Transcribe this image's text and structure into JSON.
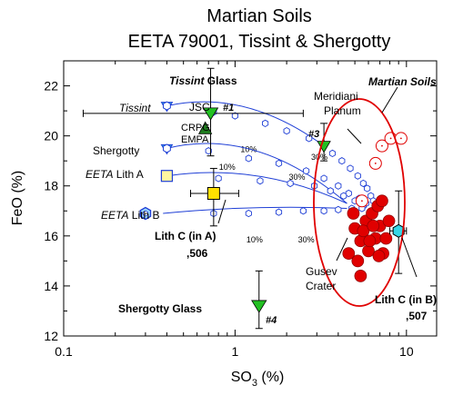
{
  "chart_data": {
    "type": "scatter",
    "title": "Martian Soils",
    "subtitle": "EETA 79001, Tissint & Shergotty",
    "xlabel_main": "SO",
    "xlabel_sub": "3",
    "xlabel_tail": " (%)",
    "ylabel": "FeO (%)",
    "x_scale": "log",
    "xlim": [
      0.1,
      15
    ],
    "ylim": [
      12,
      23
    ],
    "x_ticks": [
      {
        "value": 0.1,
        "label": "0.1"
      },
      {
        "value": 1,
        "label": "1"
      },
      {
        "value": 10,
        "label": "10"
      }
    ],
    "y_ticks": [
      {
        "value": 12,
        "label": "12"
      },
      {
        "value": 14,
        "label": "14"
      },
      {
        "value": 16,
        "label": "16"
      },
      {
        "value": 18,
        "label": "18"
      },
      {
        "value": 20,
        "label": "20"
      },
      {
        "value": 22,
        "label": "22"
      }
    ],
    "colors": {
      "mixing": "#1f3fd6",
      "gusev": "#e00000",
      "glass_green": "#22c022",
      "dark_green": "#1f7a1f",
      "lithc_yellow": "#ffe000",
      "lithc_cyan": "#36d6e6",
      "ellipse": "#e00000"
    },
    "mixing_lines": [
      {
        "start": [
          0.4,
          21.2
        ],
        "end": [
          3.3,
          19.6
        ],
        "ticks": [
          "10%",
          "30%"
        ],
        "tick_values": [
          [
            1.2,
            20.0
          ],
          [
            3.1,
            19.7
          ]
        ]
      },
      {
        "start": [
          0.4,
          19.5
        ],
        "end": [
          4.5,
          17.3
        ],
        "ticks": [
          "10%",
          "30%"
        ],
        "tick_values": [
          [
            0.9,
            19.3
          ],
          [
            2.3,
            18.9
          ]
        ]
      },
      {
        "start": [
          0.4,
          18.4
        ],
        "end": [
          4.5,
          17.3
        ],
        "ticks": [],
        "tick_values": []
      },
      {
        "start": [
          0.38,
          16.9
        ],
        "end": [
          4.5,
          17.1
        ],
        "ticks": [
          "10%",
          "30%"
        ],
        "tick_values": [
          [
            1.3,
            16.4
          ],
          [
            2.6,
            16.4
          ]
        ]
      }
    ],
    "mixing_points": [
      [
        0.4,
        21.2
      ],
      [
        0.75,
        20.95
      ],
      [
        1.0,
        20.8
      ],
      [
        1.5,
        20.5
      ],
      [
        2.0,
        20.2
      ],
      [
        2.7,
        19.9
      ],
      [
        0.4,
        19.5
      ],
      [
        0.7,
        19.4
      ],
      [
        1.2,
        19.1
      ],
      [
        1.8,
        18.9
      ],
      [
        2.6,
        18.6
      ],
      [
        3.3,
        18.3
      ],
      [
        4.0,
        18.0
      ],
      [
        4.6,
        17.7
      ],
      [
        5.3,
        17.5
      ],
      [
        5.8,
        17.3
      ],
      [
        0.4,
        18.4
      ],
      [
        0.8,
        18.3
      ],
      [
        1.4,
        18.2
      ],
      [
        2.1,
        18.1
      ],
      [
        2.9,
        18.0
      ],
      [
        3.6,
        17.8
      ],
      [
        4.3,
        17.6
      ],
      [
        5.0,
        17.4
      ],
      [
        5.6,
        17.2
      ],
      [
        0.75,
        16.9
      ],
      [
        1.2,
        16.9
      ],
      [
        1.8,
        16.95
      ],
      [
        2.5,
        17.0
      ],
      [
        3.3,
        17.0
      ],
      [
        4.0,
        17.05
      ],
      [
        4.8,
        17.1
      ],
      [
        5.5,
        17.1
      ],
      [
        3.7,
        19.3
      ],
      [
        4.2,
        19.0
      ],
      [
        4.7,
        18.7
      ],
      [
        5.2,
        18.4
      ],
      [
        5.6,
        18.1
      ],
      [
        5.9,
        17.9
      ],
      [
        6.2,
        17.6
      ],
      [
        6.4,
        17.4
      ],
      [
        6.6,
        17.2
      ]
    ],
    "gusev_points": [
      [
        4.6,
        15.3
      ],
      [
        5.0,
        16.3
      ],
      [
        5.4,
        15.8
      ],
      [
        5.8,
        16.6
      ],
      [
        6.0,
        15.4
      ],
      [
        6.3,
        16.9
      ],
      [
        6.6,
        15.9
      ],
      [
        7.0,
        16.4
      ],
      [
        7.3,
        15.3
      ],
      [
        5.2,
        15.0
      ],
      [
        6.8,
        17.2
      ],
      [
        7.6,
        15.9
      ],
      [
        4.9,
        16.9
      ],
      [
        5.6,
        16.2
      ],
      [
        6.1,
        15.8
      ],
      [
        6.9,
        15.2
      ],
      [
        6.4,
        16.4
      ],
      [
        5.4,
        14.4
      ],
      [
        7.9,
        16.6
      ],
      [
        7.2,
        17.4
      ]
    ],
    "meridiani_points": [
      [
        7.2,
        19.6
      ],
      [
        8.1,
        19.9
      ],
      [
        9.3,
        19.9
      ],
      [
        6.6,
        18.9
      ],
      [
        5.5,
        17.4
      ]
    ],
    "special_points": [
      {
        "name": "EETA Lith A",
        "x": 0.4,
        "y": 18.4,
        "shape": "square"
      },
      {
        "name": "EETA Lith B",
        "x": 0.3,
        "y": 16.9,
        "shape": "hexagon"
      },
      {
        "name": "Lith C (in A)",
        "x": 0.75,
        "y": 17.7,
        "shape": "square",
        "xerr": [
          0.55,
          1.05
        ],
        "yerr": [
          16.4,
          18.7
        ]
      },
      {
        "name": "Lith C (in B)",
        "x": 9.0,
        "y": 16.2,
        "shape": "hexagon",
        "xerr": [
          8.0,
          10.0
        ],
        "yerr": [
          14.5,
          17.8
        ]
      },
      {
        "name": "Tissint Glass",
        "x": 0.72,
        "y": 20.9,
        "shape": "triangle-down",
        "xerr": [
          0.13,
          2.5
        ],
        "yerr": [
          19.2,
          22.7
        ]
      },
      {
        "name": "CRPG EMPA",
        "x": 0.67,
        "y": 20.3,
        "shape": "triangle-up"
      },
      {
        "name": "Shergotty Glass",
        "x": 1.38,
        "y": 13.2,
        "shape": "triangle-down",
        "yerr": [
          12.3,
          14.6
        ]
      },
      {
        "name": "#3",
        "x": 3.3,
        "y": 19.6,
        "shape": "triangle-down",
        "yerr": [
          19.0,
          20.5
        ]
      }
    ],
    "labels": {
      "tissint": "Tissint",
      "tissint_glass_a": "Tissint",
      "tissint_glass_b": " Glass",
      "jsc": "JSC",
      "n1": "#1",
      "crpg": "CRPG",
      "empa": "EMPA",
      "shergotty": "Shergotty",
      "eeta_a_it": "EETA",
      "eeta_a_rest": " Lith A",
      "eeta_b_it": "EETA",
      "eeta_b_rest": " Lith B",
      "lithc_a_1": "Lith C (in A)",
      "lithc_a_2": ",506",
      "shergotty_glass": "Shergotty Glass",
      "n4": "#4",
      "n3": "#3",
      "meridiani_1": "Meridiani",
      "meridiani_2": "Planum",
      "martian_soils": "Martian Soils",
      "gusev_1": "Gusev",
      "gusev_2": "Crater",
      "lithc_b_1": "Lith C (in B)",
      "lithc_b_2": ",507"
    }
  }
}
